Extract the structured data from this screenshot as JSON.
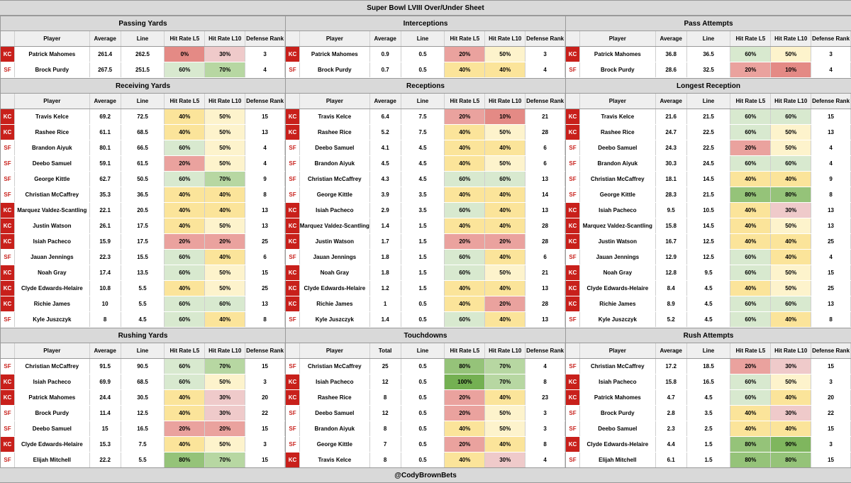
{
  "title": "Super Bowl LVIII Over/Under Sheet",
  "footer": "@CodyBrownBets",
  "colors": {
    "kc_red": "#c8201b",
    "sf_text": "#c8201b",
    "heat": {
      "0": "#e48a85",
      "10": "#e48a85",
      "20": "#eaa29e",
      "30": "#efcaca",
      "40": "#fbe49a",
      "50": "#fdf3cc",
      "60": "#d8e9cf",
      "70": "#b7d7a2",
      "80": "#95c379",
      "90": "#7fb65e",
      "100": "#74b052"
    }
  },
  "headers": {
    "player": "Player",
    "average": "Average",
    "total": "Total",
    "line": "Line",
    "hr5": "Hit Rate L5",
    "hr10": "Hit Rate L10",
    "def": "Defense Rank"
  },
  "sections": [
    {
      "title": "Passing Yards",
      "avg_header": "Average",
      "rows": [
        [
          "KC",
          "Patrick Mahomes",
          "261.4",
          "262.5",
          "0%",
          "30%",
          "3"
        ],
        [
          "SF",
          "Brock Purdy",
          "267.5",
          "251.5",
          "60%",
          "70%",
          "4"
        ]
      ]
    },
    {
      "title": "Interceptions",
      "avg_header": "Average",
      "rows": [
        [
          "KC",
          "Patrick Mahomes",
          "0.9",
          "0.5",
          "20%",
          "50%",
          "3"
        ],
        [
          "SF",
          "Brock Purdy",
          "0.7",
          "0.5",
          "40%",
          "40%",
          "4"
        ]
      ]
    },
    {
      "title": "Pass Attempts",
      "avg_header": "Average",
      "rows": [
        [
          "KC",
          "Patrick Mahomes",
          "36.8",
          "36.5",
          "60%",
          "50%",
          "3"
        ],
        [
          "SF",
          "Brock Purdy",
          "28.6",
          "32.5",
          "20%",
          "10%",
          "4"
        ]
      ]
    },
    {
      "title": "Receiving Yards",
      "avg_header": "Average",
      "rows": [
        [
          "KC",
          "Travis Kelce",
          "69.2",
          "72.5",
          "40%",
          "50%",
          "15"
        ],
        [
          "KC",
          "Rashee Rice",
          "61.1",
          "68.5",
          "40%",
          "50%",
          "13"
        ],
        [
          "SF",
          "Brandon Aiyuk",
          "80.1",
          "66.5",
          "60%",
          "50%",
          "4"
        ],
        [
          "SF",
          "Deebo Samuel",
          "59.1",
          "61.5",
          "20%",
          "50%",
          "4"
        ],
        [
          "SF",
          "George Kittle",
          "62.7",
          "50.5",
          "60%",
          "70%",
          "9"
        ],
        [
          "SF",
          "Christian McCaffrey",
          "35.3",
          "36.5",
          "40%",
          "40%",
          "8"
        ],
        [
          "KC",
          "Marquez Valdez-Scantling",
          "22.1",
          "20.5",
          "40%",
          "40%",
          "13"
        ],
        [
          "KC",
          "Justin Watson",
          "26.1",
          "17.5",
          "40%",
          "50%",
          "13"
        ],
        [
          "KC",
          "Isiah Pacheco",
          "15.9",
          "17.5",
          "20%",
          "20%",
          "25"
        ],
        [
          "SF",
          "Jauan Jennings",
          "22.3",
          "15.5",
          "60%",
          "40%",
          "6"
        ],
        [
          "KC",
          "Noah Gray",
          "17.4",
          "13.5",
          "60%",
          "50%",
          "15"
        ],
        [
          "KC",
          "Clyde Edwards-Helaire",
          "10.8",
          "5.5",
          "40%",
          "50%",
          "25"
        ],
        [
          "KC",
          "Richie James",
          "10",
          "5.5",
          "60%",
          "60%",
          "13"
        ],
        [
          "SF",
          "Kyle Juszczyk",
          "8",
          "4.5",
          "60%",
          "40%",
          "8"
        ]
      ]
    },
    {
      "title": "Receptions",
      "avg_header": "Average",
      "rows": [
        [
          "KC",
          "Travis Kelce",
          "6.4",
          "7.5",
          "20%",
          "10%",
          "21"
        ],
        [
          "KC",
          "Rashee Rice",
          "5.2",
          "7.5",
          "40%",
          "50%",
          "28"
        ],
        [
          "SF",
          "Deebo Samuel",
          "4.1",
          "4.5",
          "40%",
          "40%",
          "6"
        ],
        [
          "SF",
          "Brandon Aiyuk",
          "4.5",
          "4.5",
          "40%",
          "50%",
          "6"
        ],
        [
          "SF",
          "Christian McCaffrey",
          "4.3",
          "4.5",
          "60%",
          "60%",
          "13"
        ],
        [
          "SF",
          "George Kittle",
          "3.9",
          "3.5",
          "40%",
          "40%",
          "14"
        ],
        [
          "KC",
          "Isiah Pacheco",
          "2.9",
          "3.5",
          "60%",
          "40%",
          "13"
        ],
        [
          "KC",
          "Marquez Valdez-Scantling",
          "1.4",
          "1.5",
          "40%",
          "40%",
          "28"
        ],
        [
          "KC",
          "Justin Watson",
          "1.7",
          "1.5",
          "20%",
          "20%",
          "28"
        ],
        [
          "SF",
          "Jauan Jennings",
          "1.8",
          "1.5",
          "60%",
          "40%",
          "6"
        ],
        [
          "KC",
          "Noah Gray",
          "1.8",
          "1.5",
          "60%",
          "50%",
          "21"
        ],
        [
          "KC",
          "Clyde Edwards-Helaire",
          "1.2",
          "1.5",
          "40%",
          "40%",
          "13"
        ],
        [
          "KC",
          "Richie James",
          "1",
          "0.5",
          "40%",
          "20%",
          "28"
        ],
        [
          "SF",
          "Kyle Juszczyk",
          "1.4",
          "0.5",
          "60%",
          "40%",
          "13"
        ]
      ]
    },
    {
      "title": "Longest Reception",
      "avg_header": "Average",
      "rows": [
        [
          "KC",
          "Travis Kelce",
          "21.6",
          "21.5",
          "60%",
          "60%",
          "15"
        ],
        [
          "KC",
          "Rashee Rice",
          "24.7",
          "22.5",
          "60%",
          "50%",
          "13"
        ],
        [
          "SF",
          "Deebo Samuel",
          "24.3",
          "22.5",
          "20%",
          "50%",
          "4"
        ],
        [
          "SF",
          "Brandon Aiyuk",
          "30.3",
          "24.5",
          "60%",
          "60%",
          "4"
        ],
        [
          "SF",
          "Christian McCaffrey",
          "18.1",
          "14.5",
          "40%",
          "40%",
          "9"
        ],
        [
          "SF",
          "George Kittle",
          "28.3",
          "21.5",
          "80%",
          "80%",
          "8"
        ],
        [
          "KC",
          "Isiah Pacheco",
          "9.5",
          "10.5",
          "40%",
          "30%",
          "13"
        ],
        [
          "KC",
          "Marquez Valdez-Scantling",
          "15.8",
          "14.5",
          "40%",
          "50%",
          "13"
        ],
        [
          "KC",
          "Justin Watson",
          "16.7",
          "12.5",
          "40%",
          "40%",
          "25"
        ],
        [
          "SF",
          "Jauan Jennings",
          "12.9",
          "12.5",
          "60%",
          "40%",
          "4"
        ],
        [
          "KC",
          "Noah Gray",
          "12.8",
          "9.5",
          "60%",
          "50%",
          "15"
        ],
        [
          "KC",
          "Clyde Edwards-Helaire",
          "8.4",
          "4.5",
          "40%",
          "50%",
          "25"
        ],
        [
          "KC",
          "Richie James",
          "8.9",
          "4.5",
          "60%",
          "60%",
          "13"
        ],
        [
          "SF",
          "Kyle Juszczyk",
          "5.2",
          "4.5",
          "60%",
          "40%",
          "8"
        ]
      ]
    },
    {
      "title": "Rushing Yards",
      "avg_header": "Average",
      "rows": [
        [
          "SF",
          "Christian McCaffrey",
          "91.5",
          "90.5",
          "60%",
          "70%",
          "15"
        ],
        [
          "KC",
          "Isiah Pacheco",
          "69.9",
          "68.5",
          "60%",
          "50%",
          "3"
        ],
        [
          "KC",
          "Patrick Mahomes",
          "24.4",
          "30.5",
          "40%",
          "30%",
          "20"
        ],
        [
          "SF",
          "Brock Purdy",
          "11.4",
          "12.5",
          "40%",
          "30%",
          "22"
        ],
        [
          "SF",
          "Deebo Samuel",
          "15",
          "16.5",
          "20%",
          "20%",
          "15"
        ],
        [
          "KC",
          "Clyde Edwards-Helaire",
          "15.3",
          "7.5",
          "40%",
          "50%",
          "3"
        ],
        [
          "SF",
          "Elijah Mitchell",
          "22.2",
          "5.5",
          "80%",
          "70%",
          "15"
        ]
      ]
    },
    {
      "title": "Touchdowns",
      "avg_header": "Total",
      "rows": [
        [
          "SF",
          "Christian McCaffrey",
          "25",
          "0.5",
          "80%",
          "70%",
          "4"
        ],
        [
          "KC",
          "Isiah Pacheco",
          "12",
          "0.5",
          "100%",
          "70%",
          "8"
        ],
        [
          "KC",
          "Rashee Rice",
          "8",
          "0.5",
          "20%",
          "40%",
          "23"
        ],
        [
          "SF",
          "Deebo Samuel",
          "12",
          "0.5",
          "20%",
          "50%",
          "3"
        ],
        [
          "SF",
          "Brandon Aiyuk",
          "8",
          "0.5",
          "40%",
          "50%",
          "3"
        ],
        [
          "SF",
          "George Kittle",
          "7",
          "0.5",
          "20%",
          "40%",
          "8"
        ],
        [
          "KC",
          "Travis Kelce",
          "8",
          "0.5",
          "40%",
          "30%",
          "4"
        ]
      ]
    },
    {
      "title": "Rush Attempts",
      "avg_header": "Average",
      "rows": [
        [
          "SF",
          "Christian McCaffrey",
          "17.2",
          "18.5",
          "20%",
          "30%",
          "15"
        ],
        [
          "KC",
          "Isiah Pacheco",
          "15.8",
          "16.5",
          "60%",
          "50%",
          "3"
        ],
        [
          "KC",
          "Patrick Mahomes",
          "4.7",
          "4.5",
          "60%",
          "40%",
          "20"
        ],
        [
          "SF",
          "Brock Purdy",
          "2.8",
          "3.5",
          "40%",
          "30%",
          "22"
        ],
        [
          "SF",
          "Deebo Samuel",
          "2.3",
          "2.5",
          "40%",
          "40%",
          "15"
        ],
        [
          "KC",
          "Clyde Edwards-Helaire",
          "4.4",
          "1.5",
          "80%",
          "90%",
          "3"
        ],
        [
          "SF",
          "Elijah Mitchell",
          "6.1",
          "1.5",
          "80%",
          "80%",
          "15"
        ]
      ]
    }
  ]
}
